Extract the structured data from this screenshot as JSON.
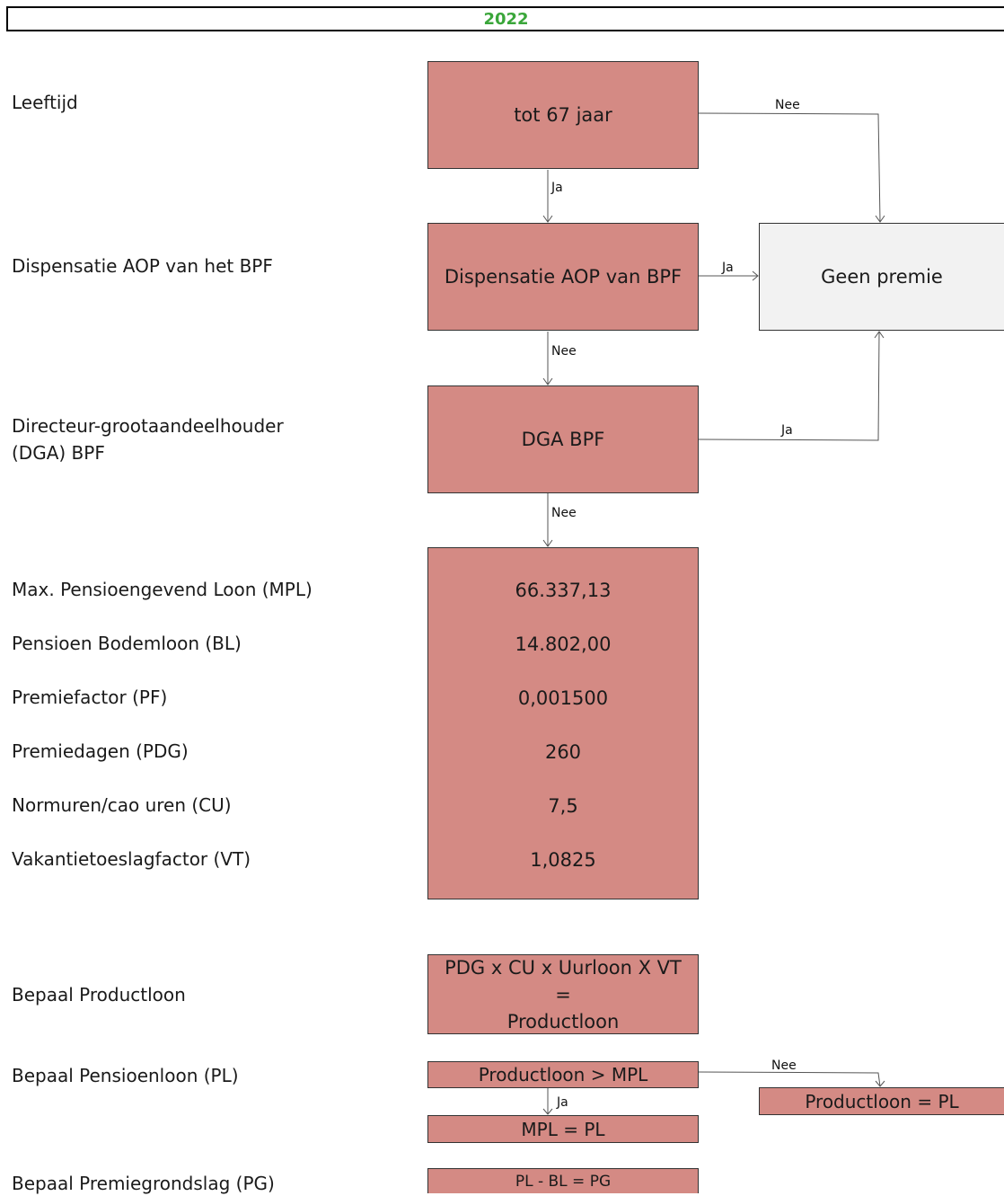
{
  "header": {
    "year": "2022"
  },
  "labels": {
    "leeftijd": "Leeftijd",
    "dispensatie": "Dispensatie AOP van het BPF",
    "dga_line1": "Directeur-grootaandeelhouder",
    "dga_line2": "(DGA) BPF",
    "mpl": "Max. Pensioengevend Loon (MPL)",
    "bl": "Pensioen Bodemloon (BL)",
    "pf": "Premiefactor (PF)",
    "pdg": "Premiedagen (PDG)",
    "cu": "Normuren/cao uren (CU)",
    "vt": "Vakantietoeslagfactor (VT)",
    "productloon": "Bepaal Productloon",
    "pensioenloon": "Bepaal Pensioenloon (PL)",
    "premiegrondslag": "Bepaal Premiegrondslag (PG)"
  },
  "boxes": {
    "age": "tot 67 jaar",
    "dispensatie": "Dispensatie AOP van BPF",
    "dga": "DGA BPF",
    "geen_premie": "Geen premie",
    "formula_line1": "PDG x CU x Uurloon X VT",
    "formula_line2": "=",
    "formula_line3": "Productloon",
    "compare": "Productloon > MPL",
    "mpl_pl": "MPL = PL",
    "productloon_pl": "Productloon = PL",
    "pg": "PL - BL = PG"
  },
  "values": {
    "mpl": "66.337,13",
    "bl": "14.802,00",
    "pf": "0,001500",
    "pdg": "260",
    "cu": "7,5",
    "vt": "1,0825"
  },
  "edges": {
    "age_no": "Nee",
    "age_yes": "Ja",
    "disp_yes": "Ja",
    "disp_no": "Nee",
    "dga_yes": "Ja",
    "dga_no": "Nee",
    "compare_no": "Nee",
    "compare_yes": "Ja"
  }
}
